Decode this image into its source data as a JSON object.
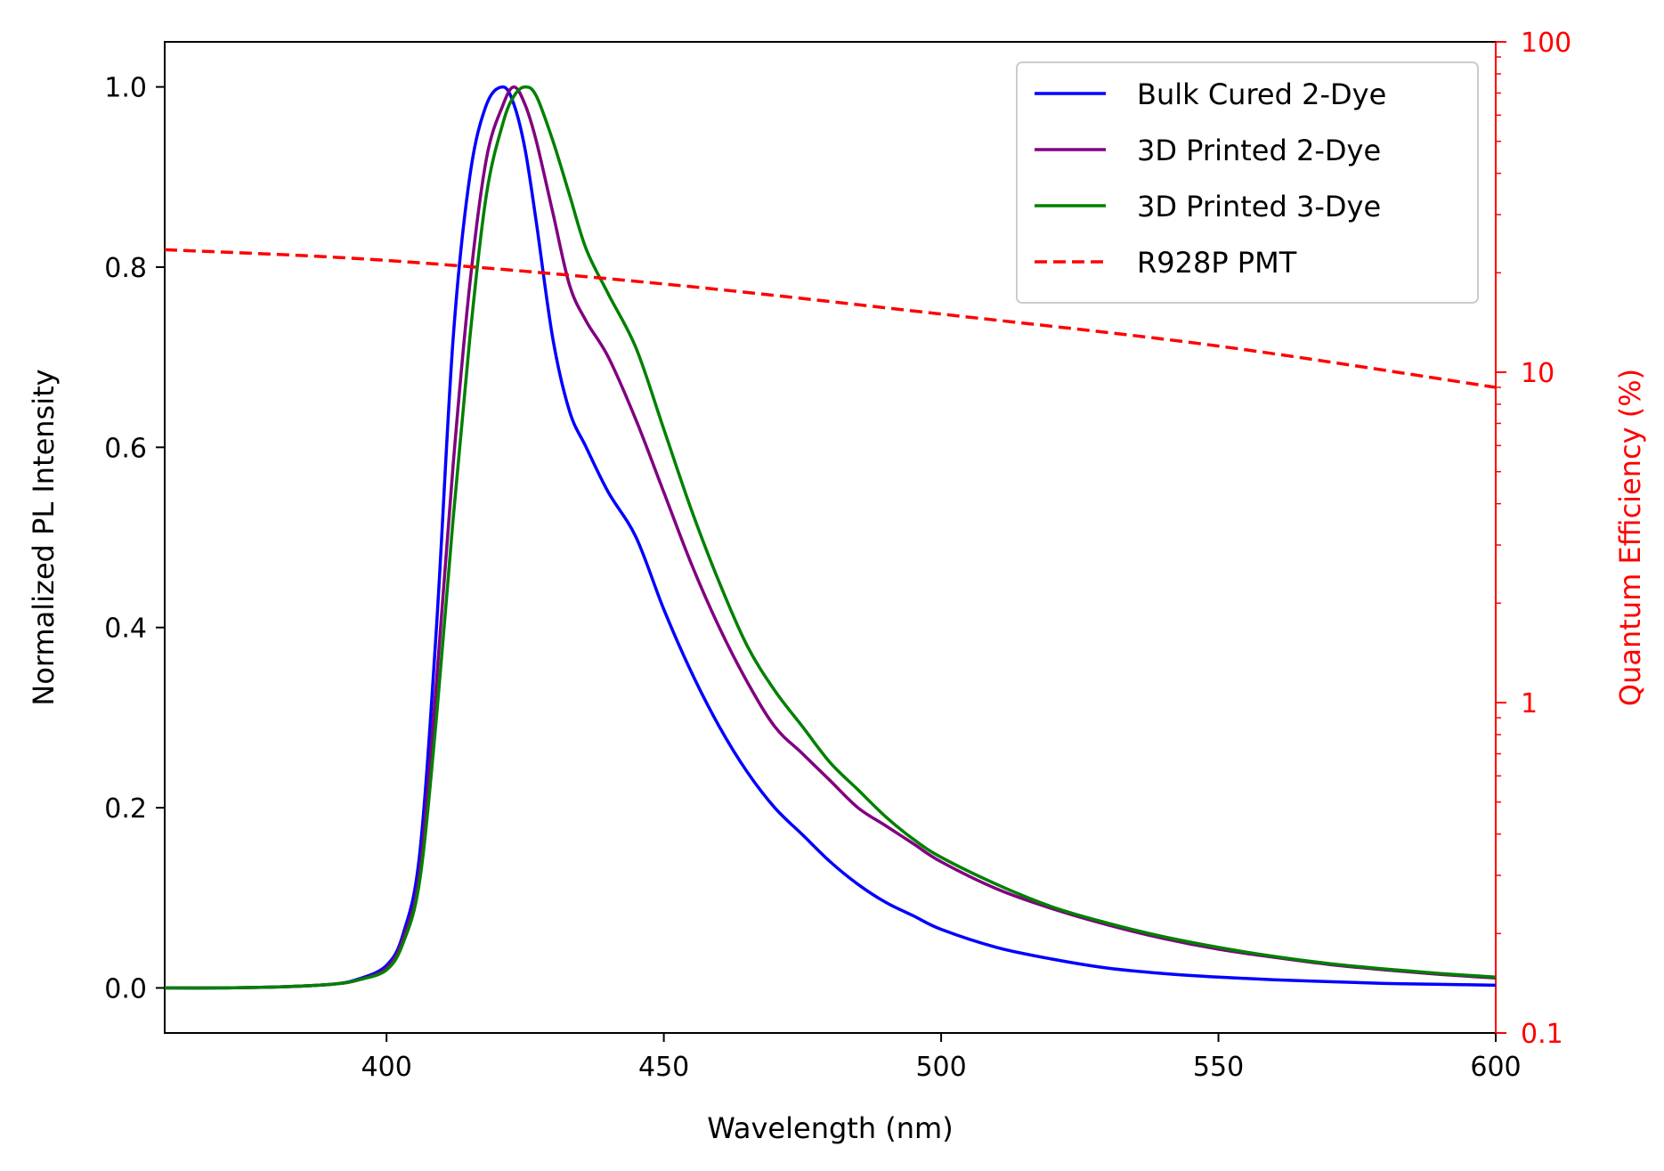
{
  "chart_data": {
    "type": "line",
    "title": "",
    "xlabel": "Wavelength (nm)",
    "ylabel": "Normalized PL Intensity",
    "y2label": "Quantum Efficiency (%)",
    "xlim": [
      360,
      600
    ],
    "ylim": [
      -0.05,
      1.05
    ],
    "y2lim": [
      0.1,
      100
    ],
    "y2scale": "log",
    "xticks": [
      400,
      450,
      500,
      550,
      600
    ],
    "xtick_labels": [
      "400",
      "450",
      "500",
      "550",
      "600"
    ],
    "yticks": [
      0.0,
      0.2,
      0.4,
      0.6,
      0.8,
      1.0
    ],
    "ytick_labels": [
      "0.0",
      "0.2",
      "0.4",
      "0.6",
      "0.8",
      "1.0"
    ],
    "y2ticks": [
      0.1,
      1,
      10,
      100
    ],
    "y2tick_labels": [
      "0.1",
      "1",
      "10",
      "100"
    ],
    "legend_position": "top-right",
    "accent_color": "#ff0000",
    "x": [
      360,
      370,
      380,
      390,
      395,
      400,
      403,
      406,
      409,
      412,
      415,
      418,
      421,
      423,
      425,
      427,
      430,
      433,
      436,
      440,
      445,
      450,
      455,
      460,
      465,
      470,
      475,
      480,
      485,
      490,
      495,
      500,
      510,
      520,
      530,
      540,
      550,
      560,
      570,
      580,
      590,
      600
    ],
    "series": [
      {
        "name": "Bulk Cured 2-Dye",
        "color": "#0000ff",
        "axis": "left",
        "style": "solid",
        "values": [
          0.0,
          0.0,
          0.001,
          0.004,
          0.01,
          0.025,
          0.06,
          0.15,
          0.4,
          0.72,
          0.9,
          0.98,
          1.0,
          0.98,
          0.93,
          0.85,
          0.72,
          0.64,
          0.6,
          0.55,
          0.5,
          0.42,
          0.35,
          0.29,
          0.24,
          0.2,
          0.17,
          0.14,
          0.115,
          0.095,
          0.08,
          0.065,
          0.045,
          0.032,
          0.022,
          0.016,
          0.012,
          0.009,
          0.007,
          0.005,
          0.004,
          0.003
        ]
      },
      {
        "name": "3D Printed 2-Dye",
        "color": "#800080",
        "axis": "left",
        "style": "solid",
        "values": [
          0.0,
          0.0,
          0.001,
          0.004,
          0.009,
          0.022,
          0.055,
          0.13,
          0.34,
          0.58,
          0.78,
          0.92,
          0.98,
          1.0,
          0.98,
          0.94,
          0.86,
          0.78,
          0.74,
          0.7,
          0.63,
          0.55,
          0.47,
          0.4,
          0.34,
          0.29,
          0.26,
          0.23,
          0.2,
          0.18,
          0.16,
          0.14,
          0.11,
          0.088,
          0.07,
          0.055,
          0.043,
          0.034,
          0.026,
          0.02,
          0.015,
          0.011
        ]
      },
      {
        "name": "3D Printed 3-Dye",
        "color": "#008000",
        "axis": "left",
        "style": "solid",
        "values": [
          0.0,
          0.0,
          0.001,
          0.004,
          0.009,
          0.02,
          0.05,
          0.12,
          0.3,
          0.52,
          0.72,
          0.88,
          0.96,
          0.99,
          1.0,
          0.99,
          0.94,
          0.88,
          0.82,
          0.77,
          0.71,
          0.62,
          0.53,
          0.45,
          0.38,
          0.33,
          0.29,
          0.25,
          0.22,
          0.19,
          0.165,
          0.145,
          0.115,
          0.09,
          0.072,
          0.057,
          0.045,
          0.035,
          0.027,
          0.021,
          0.016,
          0.012
        ]
      }
    ],
    "secondary_series": [
      {
        "name": "R928P PMT",
        "color": "#ff0000",
        "axis": "right",
        "style": "dashed",
        "x": [
          360,
          400,
          450,
          500,
          550,
          600
        ],
        "values": [
          23.5,
          21.8,
          18.5,
          15.0,
          12.0,
          9.0
        ]
      }
    ]
  }
}
